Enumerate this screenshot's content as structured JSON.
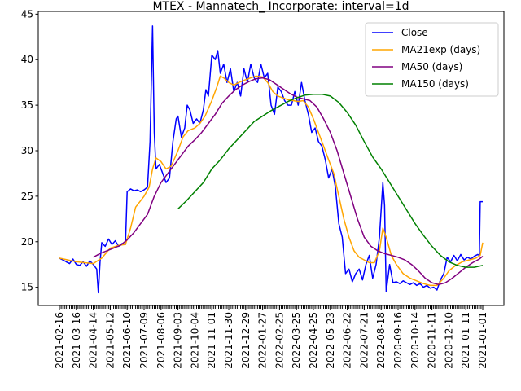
{
  "chart_data": {
    "type": "line",
    "title": "MTEX - Mannatech_ Incorporate: interval=1d",
    "xlabel": "",
    "ylabel": "",
    "ylim": [
      13,
      45.3
    ],
    "y_ticks": [
      15,
      20,
      25,
      30,
      35,
      40,
      45
    ],
    "x_tick_labels": [
      "2021-02-16",
      "2021-03-16",
      "2021-04-14",
      "2021-05-12",
      "2021-06-10",
      "2021-07-09",
      "2021-08-06",
      "2021-09-03",
      "2021-10-04",
      "2021-11-01",
      "2021-11-30",
      "2021-12-29",
      "2022-01-27",
      "2022-02-25",
      "2022-03-25",
      "2022-04-25",
      "2022-05-23",
      "2022-06-22",
      "2022-07-21",
      "2022-08-18",
      "2020-09-16",
      "2020-10-14",
      "2020-11-11",
      "2020-12-10",
      "2021-01-11",
      "2021-01-01"
    ],
    "x_range": [
      0,
      25
    ],
    "grid": false,
    "legend_position": "top-right",
    "series": [
      {
        "name": "Close",
        "color": "#0000ff",
        "points": [
          [
            0,
            18.2
          ],
          [
            0.2,
            18.0
          ],
          [
            0.4,
            17.8
          ],
          [
            0.6,
            17.6
          ],
          [
            0.8,
            18.1
          ],
          [
            1.0,
            17.5
          ],
          [
            1.2,
            17.4
          ],
          [
            1.4,
            17.8
          ],
          [
            1.6,
            17.3
          ],
          [
            1.8,
            17.9
          ],
          [
            2.0,
            17.5
          ],
          [
            2.2,
            17.0
          ],
          [
            2.3,
            14.4
          ],
          [
            2.4,
            17.8
          ],
          [
            2.5,
            19.9
          ],
          [
            2.7,
            19.5
          ],
          [
            2.9,
            20.3
          ],
          [
            3.1,
            19.7
          ],
          [
            3.3,
            20.1
          ],
          [
            3.5,
            19.5
          ],
          [
            3.7,
            19.8
          ],
          [
            3.9,
            19.7
          ],
          [
            4.0,
            25.5
          ],
          [
            4.2,
            25.8
          ],
          [
            4.4,
            25.6
          ],
          [
            4.6,
            25.7
          ],
          [
            4.8,
            25.5
          ],
          [
            5.0,
            25.7
          ],
          [
            5.2,
            26.0
          ],
          [
            5.35,
            31.0
          ],
          [
            5.5,
            43.7
          ],
          [
            5.6,
            32.0
          ],
          [
            5.7,
            28.0
          ],
          [
            5.9,
            28.5
          ],
          [
            6.1,
            27.5
          ],
          [
            6.3,
            26.5
          ],
          [
            6.5,
            27.0
          ],
          [
            6.7,
            31.0
          ],
          [
            6.9,
            33.5
          ],
          [
            7.0,
            33.8
          ],
          [
            7.2,
            31.5
          ],
          [
            7.4,
            32.5
          ],
          [
            7.55,
            35.0
          ],
          [
            7.7,
            34.5
          ],
          [
            7.9,
            33.0
          ],
          [
            8.1,
            33.5
          ],
          [
            8.3,
            33.0
          ],
          [
            8.5,
            34.5
          ],
          [
            8.65,
            36.7
          ],
          [
            8.8,
            36.0
          ],
          [
            9.0,
            40.5
          ],
          [
            9.2,
            40.0
          ],
          [
            9.35,
            41.0
          ],
          [
            9.5,
            38.5
          ],
          [
            9.7,
            39.5
          ],
          [
            9.9,
            37.5
          ],
          [
            10.1,
            39.0
          ],
          [
            10.3,
            36.5
          ],
          [
            10.5,
            37.5
          ],
          [
            10.7,
            36.0
          ],
          [
            10.9,
            39.0
          ],
          [
            11.1,
            37.5
          ],
          [
            11.3,
            39.5
          ],
          [
            11.5,
            38.0
          ],
          [
            11.7,
            37.5
          ],
          [
            11.9,
            39.5
          ],
          [
            12.1,
            38.0
          ],
          [
            12.3,
            38.5
          ],
          [
            12.5,
            35.0
          ],
          [
            12.7,
            34.0
          ],
          [
            12.9,
            37.0
          ],
          [
            13.1,
            36.5
          ],
          [
            13.3,
            35.5
          ],
          [
            13.5,
            35.0
          ],
          [
            13.7,
            35.0
          ],
          [
            13.9,
            36.5
          ],
          [
            14.1,
            35.0
          ],
          [
            14.3,
            37.5
          ],
          [
            14.5,
            35.5
          ],
          [
            14.7,
            34.0
          ],
          [
            14.9,
            32.0
          ],
          [
            15.1,
            32.5
          ],
          [
            15.3,
            31.0
          ],
          [
            15.5,
            30.5
          ],
          [
            15.7,
            29.0
          ],
          [
            15.9,
            27.0
          ],
          [
            16.1,
            28.0
          ],
          [
            16.3,
            26.0
          ],
          [
            16.5,
            22.0
          ],
          [
            16.7,
            20.5
          ],
          [
            16.9,
            16.5
          ],
          [
            17.1,
            17.0
          ],
          [
            17.3,
            15.6
          ],
          [
            17.5,
            16.5
          ],
          [
            17.7,
            17.0
          ],
          [
            17.9,
            15.8
          ],
          [
            18.1,
            17.5
          ],
          [
            18.3,
            18.5
          ],
          [
            18.5,
            16.0
          ],
          [
            18.7,
            17.5
          ],
          [
            18.9,
            20.5
          ],
          [
            19.1,
            26.5
          ],
          [
            19.2,
            24.0
          ],
          [
            19.3,
            14.5
          ],
          [
            19.5,
            17.5
          ],
          [
            19.7,
            15.5
          ],
          [
            19.9,
            15.6
          ],
          [
            20.1,
            15.4
          ],
          [
            20.3,
            15.7
          ],
          [
            20.5,
            15.5
          ],
          [
            20.7,
            15.3
          ],
          [
            20.9,
            15.5
          ],
          [
            21.1,
            15.2
          ],
          [
            21.3,
            15.4
          ],
          [
            21.5,
            15.0
          ],
          [
            21.7,
            15.2
          ],
          [
            21.9,
            14.9
          ],
          [
            22.1,
            15.0
          ],
          [
            22.3,
            14.7
          ],
          [
            22.5,
            15.8
          ],
          [
            22.7,
            16.5
          ],
          [
            22.9,
            18.3
          ],
          [
            23.1,
            17.8
          ],
          [
            23.3,
            18.5
          ],
          [
            23.5,
            17.9
          ],
          [
            23.7,
            18.6
          ],
          [
            23.9,
            18.0
          ],
          [
            24.1,
            18.3
          ],
          [
            24.3,
            18.1
          ],
          [
            24.5,
            18.4
          ],
          [
            24.7,
            18.6
          ],
          [
            24.8,
            18.5
          ],
          [
            24.85,
            24.4
          ],
          [
            25.0,
            24.4
          ]
        ]
      },
      {
        "name": "MA21exp (days)",
        "color": "#ffa500",
        "points": [
          [
            0,
            18.2
          ],
          [
            0.5,
            18.0
          ],
          [
            1.0,
            17.8
          ],
          [
            1.5,
            17.7
          ],
          [
            2.0,
            17.6
          ],
          [
            2.5,
            18.2
          ],
          [
            3.0,
            19.3
          ],
          [
            3.5,
            19.6
          ],
          [
            3.9,
            19.7
          ],
          [
            4.2,
            21.5
          ],
          [
            4.5,
            23.8
          ],
          [
            5.0,
            25.0
          ],
          [
            5.3,
            26.0
          ],
          [
            5.5,
            28.0
          ],
          [
            5.7,
            29.2
          ],
          [
            6.0,
            28.8
          ],
          [
            6.3,
            28.0
          ],
          [
            6.6,
            28.3
          ],
          [
            7.0,
            30.0
          ],
          [
            7.3,
            31.5
          ],
          [
            7.6,
            32.2
          ],
          [
            8.0,
            32.5
          ],
          [
            8.3,
            33.0
          ],
          [
            8.6,
            33.8
          ],
          [
            9.0,
            35.5
          ],
          [
            9.3,
            37.0
          ],
          [
            9.5,
            38.2
          ],
          [
            9.7,
            38.0
          ],
          [
            10.0,
            37.5
          ],
          [
            10.3,
            37.2
          ],
          [
            10.6,
            37.5
          ],
          [
            11.0,
            37.8
          ],
          [
            11.3,
            38.0
          ],
          [
            11.6,
            38.2
          ],
          [
            12.0,
            38.1
          ],
          [
            12.3,
            37.5
          ],
          [
            12.6,
            36.5
          ],
          [
            12.9,
            36.0
          ],
          [
            13.2,
            35.8
          ],
          [
            13.5,
            35.6
          ],
          [
            13.8,
            35.5
          ],
          [
            14.1,
            35.4
          ],
          [
            14.4,
            35.5
          ],
          [
            14.7,
            34.8
          ],
          [
            15.0,
            33.5
          ],
          [
            15.3,
            32.0
          ],
          [
            15.6,
            30.5
          ],
          [
            15.9,
            29.0
          ],
          [
            16.2,
            27.5
          ],
          [
            16.5,
            25.0
          ],
          [
            16.8,
            22.5
          ],
          [
            17.1,
            20.5
          ],
          [
            17.4,
            19.0
          ],
          [
            17.7,
            18.3
          ],
          [
            18.0,
            18.0
          ],
          [
            18.3,
            17.7
          ],
          [
            18.6,
            17.7
          ],
          [
            18.9,
            19.0
          ],
          [
            19.1,
            21.5
          ],
          [
            19.3,
            20.5
          ],
          [
            19.6,
            18.5
          ],
          [
            19.9,
            17.5
          ],
          [
            20.3,
            16.5
          ],
          [
            20.7,
            16.0
          ],
          [
            21.1,
            15.7
          ],
          [
            21.5,
            15.4
          ],
          [
            21.9,
            15.2
          ],
          [
            22.3,
            15.2
          ],
          [
            22.7,
            16.0
          ],
          [
            23.0,
            16.8
          ],
          [
            23.4,
            17.4
          ],
          [
            23.8,
            17.8
          ],
          [
            24.2,
            18.0
          ],
          [
            24.6,
            18.2
          ],
          [
            24.85,
            18.5
          ],
          [
            25.0,
            19.9
          ]
        ]
      },
      {
        "name": "MA50 (days)",
        "color": "#800080",
        "points": [
          [
            2.0,
            18.3
          ],
          [
            2.4,
            18.7
          ],
          [
            2.8,
            19.0
          ],
          [
            3.2,
            19.3
          ],
          [
            3.6,
            19.6
          ],
          [
            4.0,
            20.2
          ],
          [
            4.4,
            21.0
          ],
          [
            4.8,
            22.0
          ],
          [
            5.2,
            23.0
          ],
          [
            5.6,
            25.0
          ],
          [
            6.0,
            26.5
          ],
          [
            6.4,
            27.5
          ],
          [
            6.8,
            28.5
          ],
          [
            7.2,
            29.5
          ],
          [
            7.6,
            30.5
          ],
          [
            8.0,
            31.2
          ],
          [
            8.4,
            32.0
          ],
          [
            8.8,
            33.0
          ],
          [
            9.2,
            34.0
          ],
          [
            9.6,
            35.2
          ],
          [
            10.0,
            36.0
          ],
          [
            10.4,
            36.7
          ],
          [
            10.8,
            37.2
          ],
          [
            11.2,
            37.6
          ],
          [
            11.6,
            37.9
          ],
          [
            12.0,
            38.0
          ],
          [
            12.4,
            37.8
          ],
          [
            12.8,
            37.3
          ],
          [
            13.2,
            36.8
          ],
          [
            13.6,
            36.3
          ],
          [
            14.0,
            35.9
          ],
          [
            14.4,
            35.7
          ],
          [
            14.8,
            35.5
          ],
          [
            15.2,
            34.8
          ],
          [
            15.6,
            33.5
          ],
          [
            16.0,
            32.0
          ],
          [
            16.4,
            30.0
          ],
          [
            16.8,
            27.5
          ],
          [
            17.2,
            25.0
          ],
          [
            17.6,
            22.5
          ],
          [
            18.0,
            20.5
          ],
          [
            18.4,
            19.5
          ],
          [
            18.8,
            19.0
          ],
          [
            19.2,
            18.7
          ],
          [
            19.6,
            18.5
          ],
          [
            20.0,
            18.3
          ],
          [
            20.4,
            18.0
          ],
          [
            20.8,
            17.5
          ],
          [
            21.2,
            16.8
          ],
          [
            21.6,
            16.0
          ],
          [
            22.0,
            15.5
          ],
          [
            22.4,
            15.3
          ],
          [
            22.8,
            15.5
          ],
          [
            23.2,
            16.0
          ],
          [
            23.6,
            16.6
          ],
          [
            24.0,
            17.2
          ],
          [
            24.4,
            17.7
          ],
          [
            24.8,
            18.1
          ],
          [
            25.0,
            18.4
          ]
        ]
      },
      {
        "name": "MA150 (days)",
        "color": "#008000",
        "points": [
          [
            7.0,
            23.6
          ],
          [
            7.5,
            24.5
          ],
          [
            8.0,
            25.5
          ],
          [
            8.5,
            26.5
          ],
          [
            9.0,
            28.0
          ],
          [
            9.5,
            29.0
          ],
          [
            10.0,
            30.2
          ],
          [
            10.5,
            31.2
          ],
          [
            11.0,
            32.2
          ],
          [
            11.5,
            33.2
          ],
          [
            12.0,
            33.8
          ],
          [
            12.5,
            34.4
          ],
          [
            13.0,
            34.9
          ],
          [
            13.5,
            35.4
          ],
          [
            14.0,
            35.8
          ],
          [
            14.5,
            36.1
          ],
          [
            15.0,
            36.2
          ],
          [
            15.5,
            36.2
          ],
          [
            16.0,
            36.0
          ],
          [
            16.5,
            35.3
          ],
          [
            17.0,
            34.2
          ],
          [
            17.5,
            32.8
          ],
          [
            18.0,
            31.0
          ],
          [
            18.5,
            29.3
          ],
          [
            19.0,
            28.0
          ],
          [
            19.5,
            26.5
          ],
          [
            20.0,
            25.0
          ],
          [
            20.5,
            23.5
          ],
          [
            21.0,
            22.0
          ],
          [
            21.5,
            20.7
          ],
          [
            22.0,
            19.5
          ],
          [
            22.5,
            18.5
          ],
          [
            23.0,
            17.8
          ],
          [
            23.5,
            17.4
          ],
          [
            24.0,
            17.2
          ],
          [
            24.5,
            17.2
          ],
          [
            25.0,
            17.4
          ]
        ]
      }
    ]
  }
}
